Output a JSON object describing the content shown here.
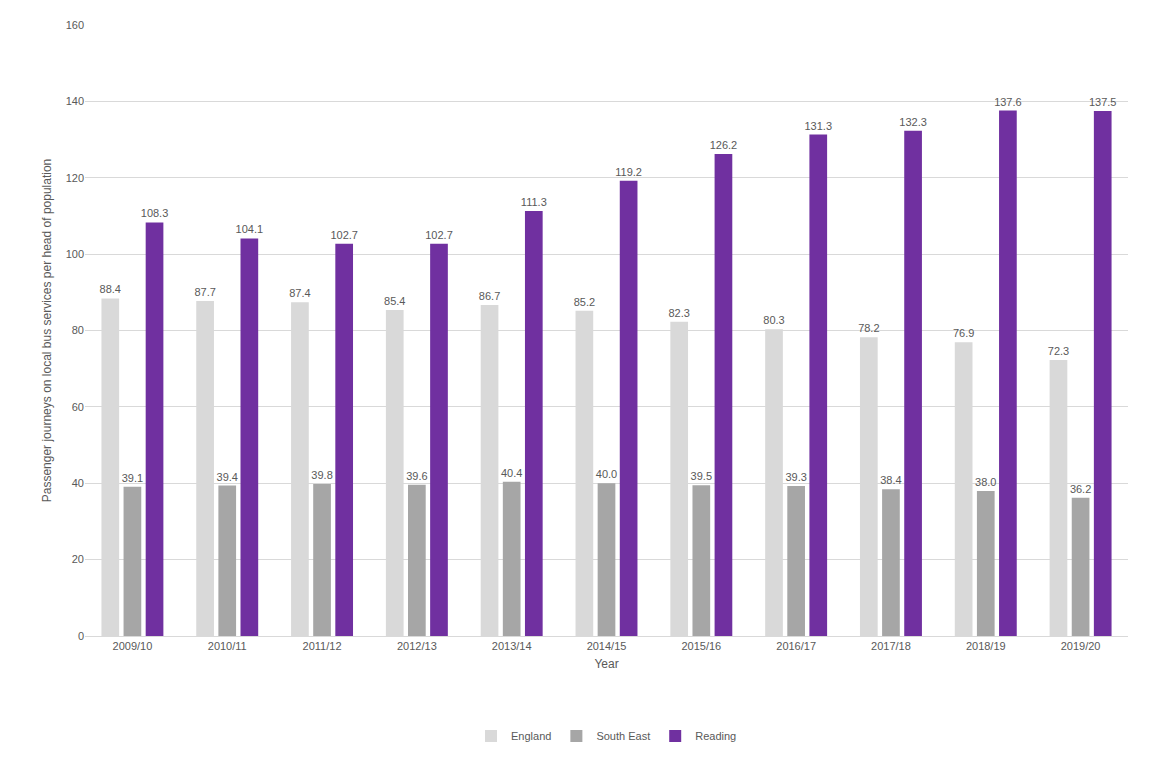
{
  "chart_data": {
    "type": "bar",
    "x_label": "Year",
    "y_label": "Passenger journeys on local bus services per head of population",
    "categories": [
      "2009/10",
      "2010/11",
      "2011/12",
      "2012/13",
      "2013/14",
      "2014/15",
      "2015/16",
      "2016/17",
      "2017/18",
      "2018/19",
      "2019/20"
    ],
    "series": [
      {
        "name": "England",
        "color": "#d9d9d9",
        "values": [
          88.4,
          87.7,
          87.4,
          85.4,
          86.7,
          85.2,
          82.3,
          80.3,
          78.2,
          76.9,
          72.3
        ],
        "value_labels": [
          "88.4",
          "87.7",
          "87.4",
          "85.4",
          "86.7",
          "85.2",
          "82.3",
          "80.3",
          "78.2",
          "76.9",
          "72.3"
        ]
      },
      {
        "name": "South East",
        "color": "#a6a6a6",
        "values": [
          39.1,
          39.4,
          39.8,
          39.6,
          40.4,
          40.0,
          39.5,
          39.3,
          38.4,
          38.0,
          36.2
        ],
        "value_labels": [
          "39.1",
          "39.4",
          "39.8",
          "39.6",
          "40.4",
          "40.0",
          "39.5",
          "39.3",
          "38.4",
          "38.0",
          "36.2"
        ]
      },
      {
        "name": "Reading",
        "color": "#7030a0",
        "values": [
          108.3,
          104.1,
          102.7,
          102.7,
          111.3,
          119.2,
          126.2,
          131.3,
          132.3,
          137.6,
          137.5
        ],
        "value_labels": [
          "108.3",
          "104.1",
          "102.7",
          "102.7",
          "111.3",
          "119.2",
          "126.2",
          "131.3",
          "132.3",
          "137.6",
          "137.5"
        ]
      }
    ],
    "ylim": [
      0,
      160
    ],
    "yticks": [
      0,
      20,
      40,
      60,
      80,
      100,
      120,
      140,
      160
    ],
    "grid": true,
    "legend": "bottom",
    "data_labels": true
  }
}
